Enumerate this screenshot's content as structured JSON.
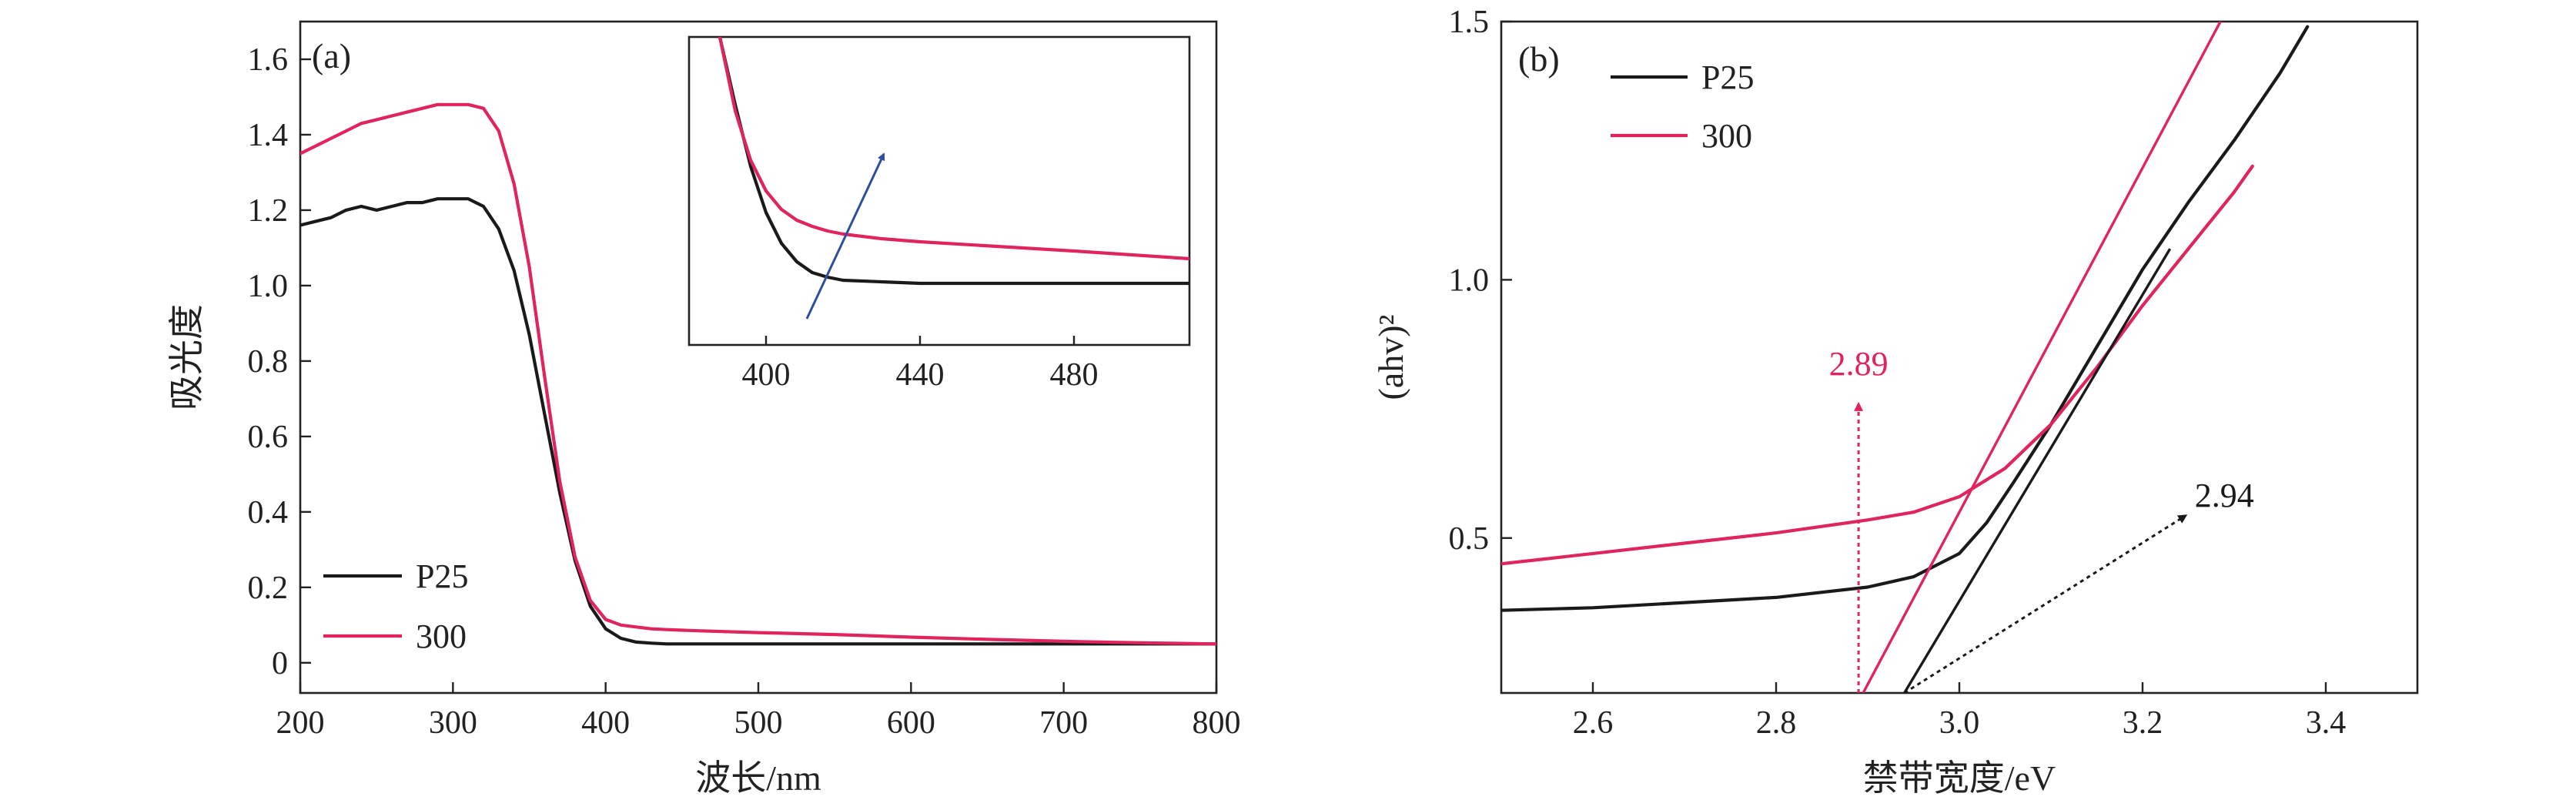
{
  "colors": {
    "p25": "#1a1a1a",
    "s300": "#e0245e",
    "arrow_inset": "#2f4f9e",
    "axis": "#222222"
  },
  "chart_data": [
    {
      "panel_label": "(a)",
      "type": "line",
      "xlabel": "波长/nm",
      "ylabel": "吸光度",
      "xlim": [
        200,
        800
      ],
      "ylim": [
        -0.08,
        1.7
      ],
      "xticks": [
        "200",
        "300",
        "400",
        "500",
        "600",
        "700",
        "800"
      ],
      "yticks": [
        "0",
        "0.2",
        "0.4",
        "0.6",
        "0.8",
        "1.0",
        "1.2",
        "1.4",
        "1.6"
      ],
      "legend": {
        "position": "bottom-left",
        "entries": [
          "P25",
          "300"
        ]
      },
      "series": [
        {
          "name": "P25",
          "x": [
            200,
            210,
            220,
            230,
            240,
            250,
            260,
            270,
            280,
            290,
            300,
            310,
            320,
            330,
            340,
            350,
            360,
            370,
            380,
            390,
            400,
            410,
            420,
            430,
            440,
            460,
            500,
            550,
            600,
            650,
            700,
            750,
            800
          ],
          "y": [
            1.16,
            1.17,
            1.18,
            1.2,
            1.21,
            1.2,
            1.21,
            1.22,
            1.22,
            1.23,
            1.23,
            1.23,
            1.21,
            1.15,
            1.04,
            0.87,
            0.66,
            0.45,
            0.27,
            0.15,
            0.09,
            0.065,
            0.055,
            0.052,
            0.05,
            0.05,
            0.05,
            0.05,
            0.05,
            0.05,
            0.05,
            0.05,
            0.05
          ]
        },
        {
          "name": "300",
          "x": [
            200,
            210,
            220,
            230,
            240,
            250,
            260,
            270,
            280,
            290,
            300,
            310,
            320,
            330,
            340,
            350,
            360,
            370,
            380,
            390,
            400,
            410,
            420,
            430,
            440,
            460,
            500,
            550,
            600,
            650,
            700,
            750,
            800
          ],
          "y": [
            1.35,
            1.37,
            1.39,
            1.41,
            1.43,
            1.44,
            1.45,
            1.46,
            1.47,
            1.48,
            1.48,
            1.48,
            1.47,
            1.41,
            1.27,
            1.05,
            0.76,
            0.48,
            0.28,
            0.165,
            0.115,
            0.1,
            0.095,
            0.09,
            0.088,
            0.085,
            0.08,
            0.075,
            0.068,
            0.062,
            0.057,
            0.053,
            0.05
          ]
        }
      ],
      "inset": {
        "xlim": [
          380,
          510
        ],
        "xticks": [
          "400",
          "440",
          "480"
        ],
        "series": [
          {
            "name": "P25",
            "x": [
              388,
              392,
              396,
              400,
              404,
              408,
              412,
              416,
              420,
              430,
              440,
              460,
              480,
              510
            ],
            "y": [
              1.0,
              0.78,
              0.58,
              0.43,
              0.33,
              0.27,
              0.235,
              0.22,
              0.21,
              0.205,
              0.2,
              0.2,
              0.2,
              0.2
            ]
          },
          {
            "name": "300",
            "x": [
              388,
              392,
              396,
              400,
              404,
              408,
              412,
              416,
              420,
              430,
              440,
              460,
              480,
              510
            ],
            "y": [
              1.0,
              0.76,
              0.6,
              0.5,
              0.44,
              0.405,
              0.385,
              0.37,
              0.36,
              0.345,
              0.335,
              0.32,
              0.305,
              0.28
            ]
          }
        ]
      }
    },
    {
      "panel_label": "(b)",
      "type": "line",
      "xlabel": "禁带宽度/eV",
      "ylabel": "(ahv)²",
      "xlim": [
        2.5,
        3.5
      ],
      "ylim": [
        0.2,
        1.5
      ],
      "xticks": [
        "2.6",
        "2.8",
        "3.0",
        "3.2",
        "3.4"
      ],
      "yticks": [
        "0.5",
        "1.0",
        "1.5"
      ],
      "legend": {
        "position": "top-left",
        "entries": [
          "P25",
          "300"
        ]
      },
      "series": [
        {
          "name": "P25",
          "x": [
            2.5,
            2.6,
            2.7,
            2.8,
            2.9,
            2.95,
            3.0,
            3.03,
            3.06,
            3.1,
            3.15,
            3.2,
            3.25,
            3.3,
            3.35,
            3.38
          ],
          "y": [
            0.36,
            0.365,
            0.375,
            0.385,
            0.405,
            0.425,
            0.47,
            0.53,
            0.61,
            0.72,
            0.87,
            1.02,
            1.15,
            1.27,
            1.4,
            1.49
          ]
        },
        {
          "name": "300",
          "x": [
            2.5,
            2.6,
            2.7,
            2.8,
            2.9,
            2.95,
            3.0,
            3.05,
            3.1,
            3.15,
            3.2,
            3.25,
            3.3,
            3.32
          ],
          "y": [
            0.45,
            0.47,
            0.49,
            0.51,
            0.535,
            0.55,
            0.58,
            0.635,
            0.72,
            0.83,
            0.95,
            1.06,
            1.17,
            1.22
          ]
        }
      ],
      "tangent_fits": [
        {
          "series": "P25",
          "x": [
            2.94,
            3.23
          ],
          "y": [
            0.2,
            1.06
          ]
        },
        {
          "series": "300",
          "x": [
            2.895,
            3.285
          ],
          "y": [
            0.2,
            1.5
          ]
        }
      ],
      "annotations": [
        {
          "text": "2.89",
          "series": "300",
          "at_x": 2.89,
          "label_x": 2.89,
          "label_y": 0.81
        },
        {
          "text": "2.94",
          "series": "P25",
          "at_x": 2.94,
          "label_x": 3.23,
          "label_y": 0.57
        }
      ]
    }
  ]
}
